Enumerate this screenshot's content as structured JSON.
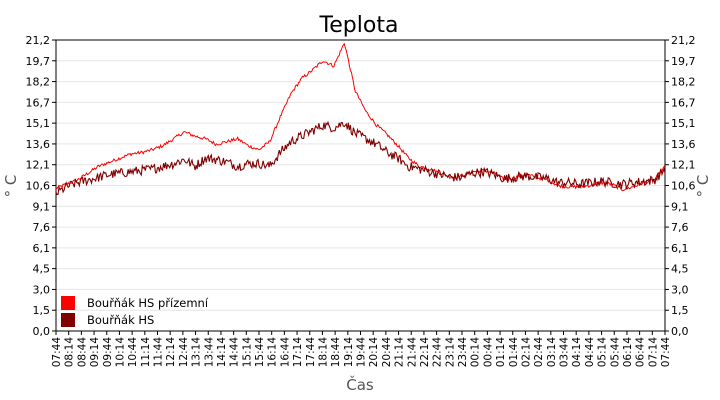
{
  "chart_data": {
    "type": "line",
    "title": "Teplota",
    "xlabel": "Čas",
    "ylabel_left": "° C",
    "ylabel_right": "° C",
    "ylim": [
      0,
      21.2
    ],
    "yticks": [
      "0,0",
      "1,5",
      "3,0",
      "4,5",
      "6,1",
      "7,6",
      "9,1",
      "10,6",
      "12,1",
      "13,6",
      "15,1",
      "16,7",
      "18,2",
      "19,7",
      "21,2"
    ],
    "xticks": [
      "07:44",
      "08:14",
      "08:44",
      "09:14",
      "09:44",
      "10:14",
      "10:44",
      "11:14",
      "11:44",
      "12:14",
      "12:44",
      "13:14",
      "13:44",
      "14:14",
      "14:44",
      "15:14",
      "15:44",
      "16:14",
      "16:44",
      "17:14",
      "17:44",
      "18:14",
      "18:44",
      "19:14",
      "19:44",
      "20:14",
      "20:44",
      "21:14",
      "21:44",
      "22:14",
      "22:44",
      "23:14",
      "23:44",
      "00:14",
      "00:44",
      "01:14",
      "01:44",
      "02:14",
      "02:44",
      "03:14",
      "03:44",
      "04:14",
      "04:44",
      "05:14",
      "05:44",
      "06:14",
      "06:44",
      "07:14",
      "07:44"
    ],
    "grid": true,
    "legend_position": "bottom-left",
    "series": [
      {
        "name": "Bouřňák HS přízemní",
        "color": "#ff0000",
        "values": [
          10.4,
          10.7,
          11.0,
          11.5,
          12.0,
          12.3,
          12.6,
          12.9,
          13.0,
          13.2,
          13.5,
          14.0,
          14.5,
          14.2,
          14.0,
          13.6,
          13.8,
          14.0,
          13.5,
          13.2,
          13.8,
          15.6,
          17.3,
          18.4,
          19.0,
          19.7,
          19.3,
          21.0,
          17.5,
          16.0,
          15.0,
          14.3,
          13.5,
          12.6,
          12.0,
          11.8,
          11.5,
          11.2,
          11.3,
          11.6,
          11.7,
          11.5,
          11.0,
          11.2,
          11.4,
          11.2,
          11.0,
          10.6,
          10.5,
          10.5,
          10.6,
          10.8,
          10.7,
          10.3,
          10.5,
          10.8,
          11.0,
          12.0
        ]
      },
      {
        "name": "Bouřňák HS",
        "color": "#800000",
        "values": [
          10.0,
          10.5,
          10.8,
          11.0,
          11.2,
          11.4,
          11.5,
          11.6,
          11.7,
          11.8,
          12.0,
          12.2,
          12.5,
          12.0,
          12.6,
          12.5,
          12.3,
          12.0,
          12.2,
          12.2,
          12.0,
          13.0,
          13.8,
          14.2,
          14.6,
          15.0,
          14.8,
          15.2,
          14.4,
          14.0,
          13.6,
          13.0,
          12.6,
          12.0,
          11.8,
          11.6,
          11.4,
          11.2,
          11.2,
          11.5,
          11.6,
          11.4,
          11.1,
          11.2,
          11.3,
          11.2,
          11.1,
          10.8,
          10.8,
          10.7,
          10.8,
          10.9,
          10.8,
          10.7,
          10.8,
          10.9,
          11.0,
          11.8
        ]
      }
    ]
  }
}
